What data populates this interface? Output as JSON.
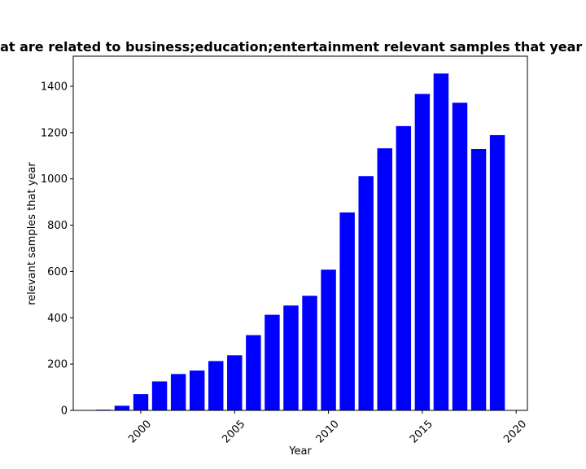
{
  "chart_data": {
    "type": "bar",
    "title": "Number of papers that are related to business;education;entertainment relevant samples that year in processed_bib.csv",
    "xlabel": "Year",
    "ylabel": "relevant samples that year",
    "categories": [
      1998,
      1999,
      2000,
      2001,
      2002,
      2003,
      2004,
      2005,
      2006,
      2007,
      2008,
      2009,
      2010,
      2011,
      2012,
      2013,
      2014,
      2015,
      2016,
      2017,
      2018,
      2019
    ],
    "values": [
      3,
      20,
      70,
      125,
      157,
      172,
      213,
      238,
      325,
      413,
      453,
      495,
      608,
      855,
      1012,
      1132,
      1228,
      1367,
      1455,
      1329,
      1129,
      1189
    ],
    "xlim": [
      1996.4,
      2020.6
    ],
    "ylim": [
      0,
      1530
    ],
    "xticks": [
      2000,
      2005,
      2010,
      2015,
      2020
    ],
    "xtick_labels": [
      "2000",
      "2005",
      "2010",
      "2015",
      "2020"
    ],
    "yticks": [
      0,
      200,
      400,
      600,
      800,
      1000,
      1200,
      1400
    ],
    "ytick_labels": [
      "0",
      "200",
      "400",
      "600",
      "800",
      "1000",
      "1200",
      "1400"
    ],
    "bar_color": "#0000ff",
    "grid": false,
    "legend": "none"
  }
}
